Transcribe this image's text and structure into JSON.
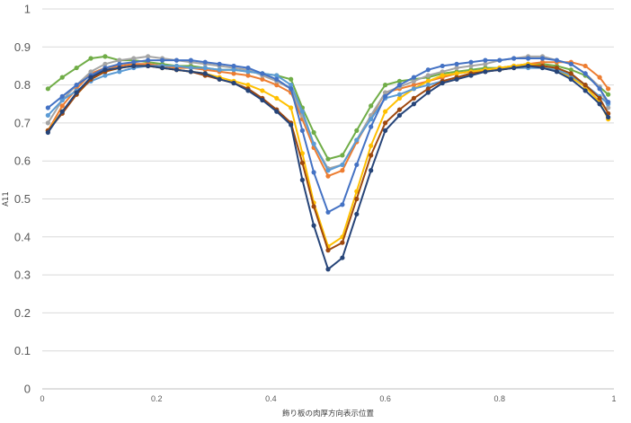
{
  "chart_data": {
    "type": "line",
    "xlabel": "飾り板の肉厚方向表示位置",
    "ylabel": "A11",
    "xlim": [
      0,
      1
    ],
    "ylim": [
      0,
      1
    ],
    "x_ticks": [
      "0",
      "0.2",
      "0.4",
      "0.6",
      "0.8",
      "1"
    ],
    "y_ticks": [
      "0",
      "0.1",
      "0.2",
      "0.3",
      "0.4",
      "0.5",
      "0.6",
      "0.7",
      "0.8",
      "0.9",
      "1"
    ],
    "grid": "horizontal",
    "legend": "none",
    "x": [
      0.01,
      0.035,
      0.06,
      0.085,
      0.11,
      0.135,
      0.16,
      0.185,
      0.21,
      0.235,
      0.26,
      0.285,
      0.31,
      0.335,
      0.36,
      0.385,
      0.41,
      0.435,
      0.455,
      0.475,
      0.5,
      0.525,
      0.55,
      0.575,
      0.6,
      0.625,
      0.65,
      0.675,
      0.7,
      0.725,
      0.75,
      0.775,
      0.8,
      0.825,
      0.85,
      0.875,
      0.9,
      0.925,
      0.95,
      0.975,
      0.99
    ],
    "series": [
      {
        "color": "#70ad47",
        "values": [
          0.79,
          0.82,
          0.845,
          0.87,
          0.875,
          0.865,
          0.865,
          0.86,
          0.855,
          0.85,
          0.85,
          0.845,
          0.84,
          0.84,
          0.835,
          0.83,
          0.825,
          0.815,
          0.74,
          0.675,
          0.605,
          0.615,
          0.68,
          0.745,
          0.8,
          0.81,
          0.815,
          0.82,
          0.83,
          0.835,
          0.84,
          0.845,
          0.845,
          0.85,
          0.855,
          0.855,
          0.85,
          0.84,
          0.825,
          0.795,
          0.775
        ]
      },
      {
        "color": "#ed7d31",
        "values": [
          0.68,
          0.745,
          0.79,
          0.83,
          0.845,
          0.85,
          0.855,
          0.855,
          0.85,
          0.845,
          0.845,
          0.84,
          0.835,
          0.83,
          0.825,
          0.815,
          0.8,
          0.78,
          0.71,
          0.635,
          0.56,
          0.575,
          0.65,
          0.715,
          0.78,
          0.79,
          0.8,
          0.81,
          0.82,
          0.83,
          0.835,
          0.84,
          0.845,
          0.85,
          0.855,
          0.86,
          0.86,
          0.86,
          0.85,
          0.82,
          0.79
        ]
      },
      {
        "color": "#a5a5a5",
        "values": [
          0.7,
          0.76,
          0.8,
          0.835,
          0.855,
          0.865,
          0.87,
          0.875,
          0.87,
          0.865,
          0.86,
          0.855,
          0.85,
          0.845,
          0.84,
          0.825,
          0.81,
          0.79,
          0.72,
          0.645,
          0.58,
          0.59,
          0.655,
          0.72,
          0.78,
          0.795,
          0.81,
          0.825,
          0.835,
          0.845,
          0.85,
          0.855,
          0.865,
          0.87,
          0.875,
          0.875,
          0.865,
          0.855,
          0.83,
          0.795,
          0.74
        ]
      },
      {
        "color": "#ffc000",
        "values": [
          0.68,
          0.73,
          0.775,
          0.815,
          0.835,
          0.845,
          0.85,
          0.85,
          0.845,
          0.84,
          0.835,
          0.83,
          0.82,
          0.81,
          0.8,
          0.785,
          0.765,
          0.74,
          0.62,
          0.49,
          0.375,
          0.4,
          0.52,
          0.64,
          0.73,
          0.765,
          0.79,
          0.81,
          0.825,
          0.83,
          0.835,
          0.84,
          0.845,
          0.85,
          0.855,
          0.85,
          0.84,
          0.82,
          0.795,
          0.755,
          0.71
        ]
      },
      {
        "color": "#5b9bd5",
        "values": [
          0.72,
          0.76,
          0.785,
          0.81,
          0.825,
          0.835,
          0.845,
          0.85,
          0.85,
          0.85,
          0.845,
          0.845,
          0.84,
          0.84,
          0.835,
          0.83,
          0.825,
          0.8,
          0.73,
          0.645,
          0.575,
          0.59,
          0.655,
          0.71,
          0.765,
          0.775,
          0.79,
          0.8,
          0.81,
          0.82,
          0.83,
          0.835,
          0.84,
          0.845,
          0.845,
          0.845,
          0.84,
          0.825,
          0.8,
          0.77,
          0.75
        ]
      },
      {
        "color": "#4472c4",
        "values": [
          0.74,
          0.77,
          0.8,
          0.825,
          0.845,
          0.855,
          0.86,
          0.865,
          0.865,
          0.865,
          0.865,
          0.86,
          0.855,
          0.85,
          0.845,
          0.83,
          0.815,
          0.79,
          0.68,
          0.57,
          0.465,
          0.485,
          0.59,
          0.69,
          0.77,
          0.8,
          0.82,
          0.84,
          0.85,
          0.855,
          0.86,
          0.865,
          0.865,
          0.87,
          0.87,
          0.87,
          0.865,
          0.855,
          0.83,
          0.79,
          0.755
        ]
      },
      {
        "color": "#9e480e",
        "values": [
          0.68,
          0.725,
          0.775,
          0.815,
          0.835,
          0.845,
          0.85,
          0.85,
          0.845,
          0.84,
          0.835,
          0.825,
          0.815,
          0.805,
          0.79,
          0.765,
          0.735,
          0.7,
          0.595,
          0.48,
          0.365,
          0.385,
          0.5,
          0.615,
          0.7,
          0.735,
          0.765,
          0.79,
          0.81,
          0.82,
          0.83,
          0.835,
          0.84,
          0.845,
          0.85,
          0.85,
          0.845,
          0.83,
          0.8,
          0.765,
          0.725
        ]
      },
      {
        "color": "#264478",
        "values": [
          0.675,
          0.73,
          0.78,
          0.82,
          0.84,
          0.845,
          0.85,
          0.85,
          0.845,
          0.84,
          0.835,
          0.83,
          0.815,
          0.805,
          0.785,
          0.76,
          0.73,
          0.695,
          0.55,
          0.43,
          0.315,
          0.345,
          0.46,
          0.575,
          0.68,
          0.72,
          0.75,
          0.78,
          0.805,
          0.815,
          0.825,
          0.835,
          0.84,
          0.845,
          0.85,
          0.845,
          0.835,
          0.815,
          0.785,
          0.75,
          0.715
        ]
      }
    ]
  }
}
